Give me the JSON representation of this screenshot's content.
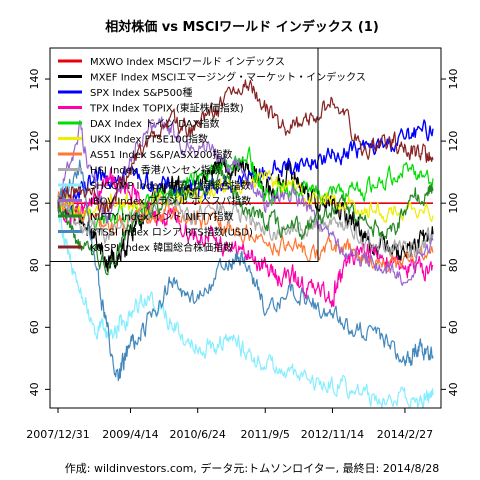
{
  "chart_data": {
    "type": "line",
    "title": "相対株価 vs MSCIワールド インデックス (1)",
    "footer": "作成: wildinvestors.com, データ元:トムソンロイター, 最終日: 2014/8/28",
    "x_tick_labels": [
      "2007/12/31",
      "2009/4/14",
      "2010/6/24",
      "2011/9/5",
      "2012/11/14",
      "2014/2/27"
    ],
    "y_ticks": [
      40,
      60,
      80,
      100,
      120,
      140
    ],
    "ylim": [
      34,
      150
    ],
    "xlim": [
      "2007-12-31",
      "2014-08-28"
    ],
    "grid": false,
    "legend_position": "top-left",
    "series": [
      {
        "name": "MXWO Index MSCIワールド インデックス",
        "color": "#e8000b",
        "lw": 1.6,
        "dates": [
          "2007-12-31",
          "2014-08-28"
        ],
        "values": [
          100,
          100
        ]
      },
      {
        "name": "MXEF Index MSCIエマージング・マーケット・インデックス",
        "color": "#000000",
        "lw": 1.2,
        "dates": [
          "2007-12-31",
          "2008-03-01",
          "2008-06-01",
          "2008-09-01",
          "2008-11-15",
          "2009-01-01",
          "2009-03-01",
          "2009-05-01",
          "2009-08-01",
          "2009-11-01",
          "2010-02-01",
          "2010-05-01",
          "2010-08-01",
          "2010-11-01",
          "2011-02-01",
          "2011-05-01",
          "2011-08-01",
          "2011-11-01",
          "2012-02-01",
          "2012-05-01",
          "2012-08-01",
          "2012-11-01",
          "2013-02-01",
          "2013-05-01",
          "2013-08-01",
          "2013-11-01",
          "2014-02-01",
          "2014-05-01",
          "2014-08-28"
        ],
        "values": [
          100,
          96,
          95,
          88,
          80,
          82,
          84,
          92,
          98,
          104,
          106,
          103,
          108,
          113,
          109,
          112,
          107,
          103,
          110,
          106,
          100,
          100,
          96,
          93,
          86,
          88,
          84,
          86,
          90
        ]
      },
      {
        "name": "SPX Index S&P500種",
        "color": "#0000ff",
        "lw": 1.4,
        "dates": [
          "2007-12-31",
          "2008-06-01",
          "2008-10-15",
          "2009-03-01",
          "2009-09-01",
          "2010-03-01",
          "2010-09-01",
          "2011-03-01",
          "2011-09-01",
          "2012-03-01",
          "2012-09-01",
          "2013-03-01",
          "2013-09-01",
          "2014-03-01",
          "2014-08-28"
        ],
        "values": [
          100,
          103,
          108,
          111,
          106,
          104,
          106,
          106,
          110,
          112,
          114,
          117,
          118,
          121,
          124
        ]
      },
      {
        "name": "TPX Index TOPIX (東証株価指数)",
        "color": "#ff00aa",
        "lw": 1.2,
        "dates": [
          "2007-12-31",
          "2008-04-01",
          "2008-08-01",
          "2008-12-01",
          "2009-03-01",
          "2009-06-01",
          "2009-10-01",
          "2010-02-01",
          "2010-06-01",
          "2010-10-01",
          "2011-03-01",
          "2011-07-01",
          "2011-11-01",
          "2012-03-01",
          "2012-07-01",
          "2012-11-14",
          "2013-01-15",
          "2013-05-20",
          "2013-09-01",
          "2014-01-01",
          "2014-05-01",
          "2014-08-28"
        ],
        "values": [
          97,
          96,
          99,
          108,
          104,
          101,
          96,
          94,
          90,
          88,
          85,
          82,
          77,
          76,
          72,
          70,
          78,
          86,
          83,
          82,
          78,
          80
        ]
      },
      {
        "name": "DAX Index ドイツ DAX指数",
        "color": "#00dd00",
        "lw": 1.2,
        "dates": [
          "2007-12-31",
          "2008-06-01",
          "2008-12-01",
          "2009-06-01",
          "2009-12-01",
          "2010-06-01",
          "2010-12-01",
          "2011-06-01",
          "2011-09-01",
          "2012-03-01",
          "2012-09-01",
          "2013-03-01",
          "2013-09-01",
          "2014-03-01",
          "2014-08-28"
        ],
        "values": [
          100,
          96,
          94,
          97,
          104,
          108,
          112,
          115,
          102,
          105,
          104,
          103,
          106,
          112,
          108
        ]
      },
      {
        "name": "UKX Index FTSE100指数",
        "color": "#eeee00",
        "lw": 1.2,
        "dates": [
          "2007-12-31",
          "2008-06-01",
          "2008-12-01",
          "2009-06-01",
          "2009-12-01",
          "2010-06-01",
          "2010-12-01",
          "2011-06-01",
          "2012-01-01",
          "2012-07-01",
          "2013-01-01",
          "2013-07-01",
          "2014-01-01",
          "2014-08-28"
        ],
        "values": [
          100,
          97,
          101,
          99,
          102,
          103,
          106,
          108,
          106,
          102,
          100,
          98,
          97,
          96
        ]
      },
      {
        "name": "AS51 Index S&P/ASX200指数",
        "color": "#ff7733",
        "lw": 1.2,
        "dates": [
          "2007-12-31",
          "2008-06-01",
          "2008-12-01",
          "2009-06-01",
          "2009-12-01",
          "2010-06-01",
          "2010-12-01",
          "2011-06-01",
          "2012-01-01",
          "2012-07-01",
          "2013-01-01",
          "2013-07-01",
          "2014-01-01",
          "2014-08-28"
        ],
        "values": [
          100,
          97,
          92,
          94,
          98,
          95,
          92,
          90,
          86,
          84,
          86,
          82,
          80,
          84
        ]
      },
      {
        "name": "HSI Index 香港ハンセン指数",
        "color": "#aaaaaa",
        "lw": 1.2,
        "dates": [
          "2007-12-31",
          "2008-06-01",
          "2008-12-01",
          "2009-06-01",
          "2009-12-01",
          "2010-06-01",
          "2010-12-01",
          "2011-06-01",
          "2011-12-01",
          "2012-06-01",
          "2012-12-01",
          "2013-06-01",
          "2013-12-01",
          "2014-05-01",
          "2014-08-28"
        ],
        "values": [
          100,
          93,
          90,
          96,
          100,
          96,
          98,
          94,
          90,
          92,
          96,
          88,
          86,
          84,
          90
        ]
      },
      {
        "name": "SHCOMP Index 中国 上海総合指数",
        "color": "#88eeff",
        "lw": 1.2,
        "dates": [
          "2007-12-31",
          "2008-04-01",
          "2008-09-01",
          "2008-12-01",
          "2009-03-01",
          "2009-07-01",
          "2009-11-01",
          "2010-04-01",
          "2010-09-01",
          "2011-02-01",
          "2011-07-01",
          "2012-01-01",
          "2012-07-01",
          "2013-01-01",
          "2013-07-01",
          "2014-01-01",
          "2014-06-01",
          "2014-08-28"
        ],
        "values": [
          100,
          78,
          60,
          58,
          62,
          70,
          66,
          56,
          54,
          56,
          50,
          46,
          42,
          42,
          38,
          37,
          36,
          38
        ]
      },
      {
        "name": "IBOV Index ブラジル ボベスパ指数",
        "color": "#9966cc",
        "lw": 1.2,
        "dates": [
          "2007-12-31",
          "2008-05-20",
          "2008-10-01",
          "2008-12-01",
          "2009-05-01",
          "2009-10-01",
          "2010-03-01",
          "2010-09-01",
          "2011-03-01",
          "2011-09-01",
          "2012-03-01",
          "2012-09-01",
          "2013-03-01",
          "2013-09-01",
          "2014-03-01",
          "2014-08-28"
        ],
        "values": [
          100,
          124,
          100,
          95,
          118,
          128,
          120,
          118,
          112,
          100,
          104,
          94,
          84,
          80,
          76,
          88
        ]
      },
      {
        "name": "NIFTY Index インド NIFTY指数",
        "color": "#228822",
        "lw": 1.2,
        "dates": [
          "2007-12-31",
          "2008-06-01",
          "2008-12-01",
          "2009-06-01",
          "2009-12-01",
          "2010-06-01",
          "2010-12-01",
          "2011-06-01",
          "2011-12-01",
          "2012-06-01",
          "2012-12-01",
          "2013-06-01",
          "2013-12-01",
          "2014-05-01",
          "2014-08-28"
        ],
        "values": [
          100,
          86,
          80,
          96,
          102,
          104,
          108,
          98,
          92,
          92,
          100,
          94,
          90,
          102,
          104
        ]
      },
      {
        "name": "RTSSI Index ロシア RTS指数(USD)",
        "color": "#4488bb",
        "lw": 1.2,
        "dates": [
          "2007-12-31",
          "2008-05-20",
          "2008-10-01",
          "2009-01-20",
          "2009-04-01",
          "2009-08-01",
          "2010-01-01",
          "2010-06-01",
          "2011-01-01",
          "2011-04-01",
          "2011-09-01",
          "2012-03-01",
          "2012-09-01",
          "2013-03-01",
          "2013-09-01",
          "2014-03-01",
          "2014-06-01",
          "2014-08-28"
        ],
        "values": [
          100,
          112,
          70,
          44,
          52,
          62,
          74,
          68,
          80,
          84,
          66,
          72,
          66,
          60,
          58,
          50,
          54,
          50
        ]
      },
      {
        "name": "KOSPI Index 韓国総合株価指数",
        "color": "#882222",
        "lw": 1.2,
        "dates": [
          "2007-12-31",
          "2008-06-01",
          "2008-12-01",
          "2009-06-01",
          "2009-12-01",
          "2010-06-01",
          "2010-12-01",
          "2011-06-01",
          "2011-12-01",
          "2012-06-01",
          "2012-12-01",
          "2013-06-01",
          "2013-12-01",
          "2014-05-01",
          "2014-08-28"
        ],
        "values": [
          100,
          106,
          98,
          116,
          126,
          124,
          132,
          138,
          124,
          126,
          134,
          118,
          120,
          116,
          114
        ]
      }
    ]
  }
}
